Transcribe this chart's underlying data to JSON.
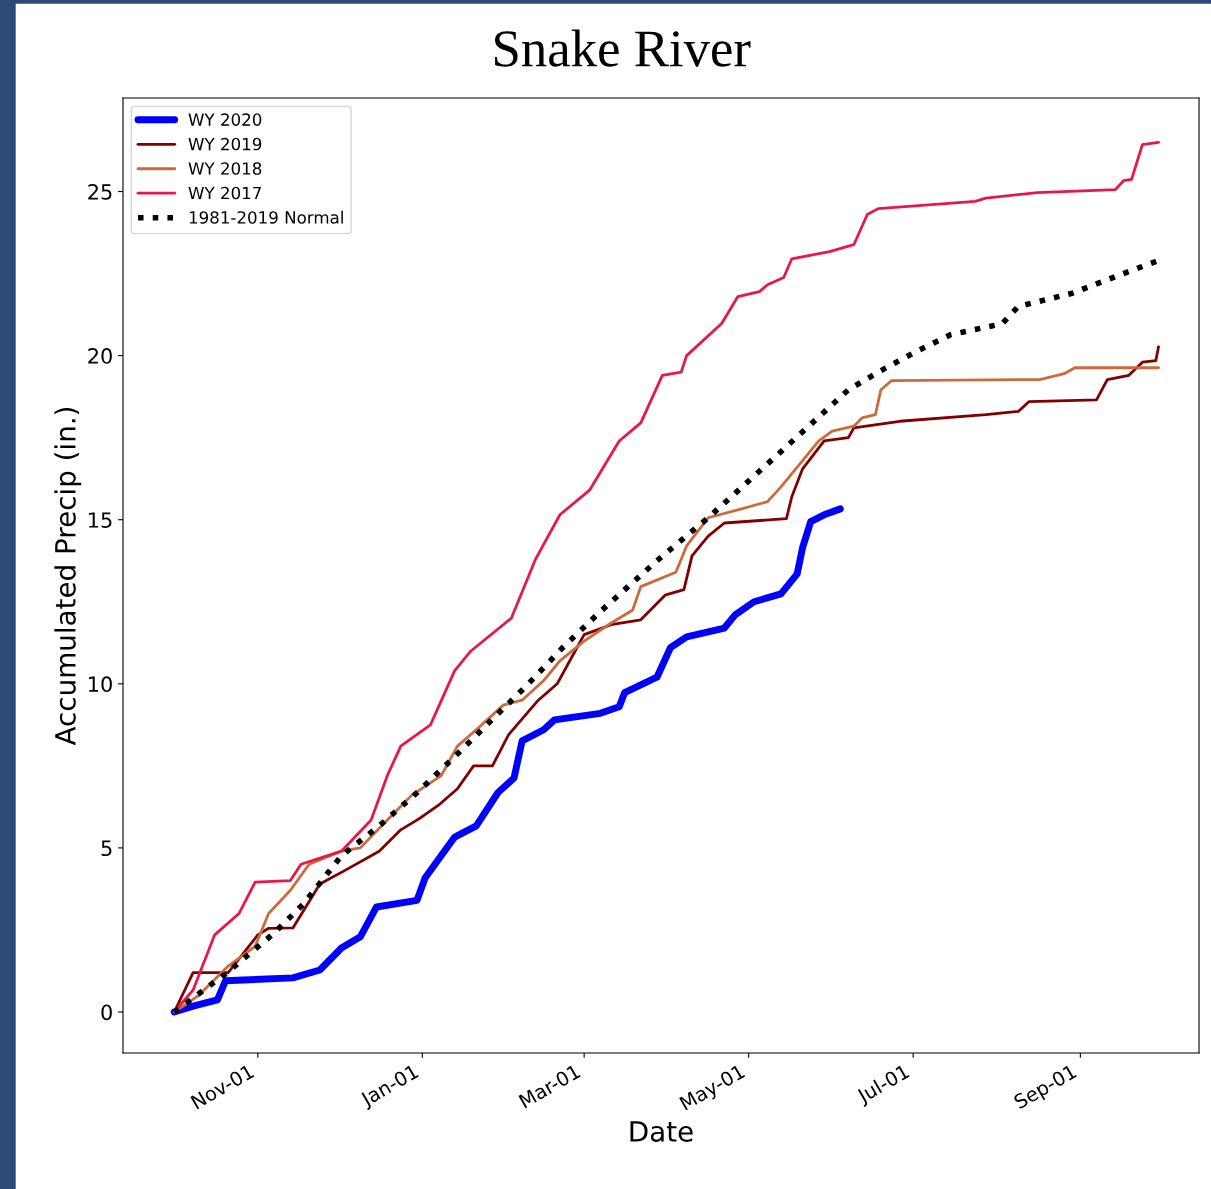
{
  "chart_data": {
    "type": "line",
    "title": "Snake River",
    "xlabel": "Date",
    "ylabel": "Accumulated Precip (in.)",
    "xlim": [
      "2019-09-12",
      "2020-10-15"
    ],
    "ylim": [
      -1.25,
      27.85
    ],
    "xticks": [
      {
        "value": "2019-11-01",
        "label": "Nov-01"
      },
      {
        "value": "2020-01-01",
        "label": "Jan-01"
      },
      {
        "value": "2020-03-01",
        "label": "Mar-01"
      },
      {
        "value": "2020-05-01",
        "label": "May-01"
      },
      {
        "value": "2020-07-01",
        "label": "Jul-01"
      },
      {
        "value": "2020-09-01",
        "label": "Sep-01"
      }
    ],
    "yticks": [
      0,
      5,
      10,
      15,
      20,
      25
    ],
    "grid": false,
    "legend": "top left",
    "marker": "none",
    "series": [
      {
        "name": "WY 2020",
        "color": "#0000ff",
        "line_style": "solid",
        "x": [
          "2019-10-01",
          "2019-10-08",
          "2019-10-17",
          "2019-10-20",
          "2019-11-14",
          "2019-11-24",
          "2019-12-02",
          "2019-12-09",
          "2019-12-15",
          "2019-12-30",
          "2020-01-02",
          "2020-01-13",
          "2020-01-21",
          "2020-01-29",
          "2020-02-04",
          "2020-02-07",
          "2020-02-15",
          "2020-02-19",
          "2020-03-07",
          "2020-03-14",
          "2020-03-16",
          "2020-03-28",
          "2020-04-02",
          "2020-04-08",
          "2020-04-22",
          "2020-04-26",
          "2020-05-03",
          "2020-05-13",
          "2020-05-19",
          "2020-05-21",
          "2020-05-24",
          "2020-05-29",
          "2020-06-04"
        ],
        "values": [
          0,
          0.18,
          0.37,
          0.95,
          1.04,
          1.28,
          1.95,
          2.29,
          3.2,
          3.4,
          4.08,
          5.33,
          5.67,
          6.68,
          7.13,
          8.26,
          8.6,
          8.9,
          9.1,
          9.3,
          9.73,
          10.2,
          11.1,
          11.43,
          11.7,
          12.1,
          12.5,
          12.74,
          13.35,
          14.15,
          14.94,
          15.15,
          15.33
        ]
      },
      {
        "name": "WY 2019",
        "color": "#800000",
        "line_style": "solid",
        "x": [
          "2019-10-01",
          "2019-10-08",
          "2019-10-21",
          "2019-11-01",
          "2019-11-05",
          "2019-11-14",
          "2019-11-24",
          "2019-12-03",
          "2019-12-16",
          "2019-12-24",
          "2019-12-31",
          "2020-01-07",
          "2020-01-14",
          "2020-01-20",
          "2020-01-27",
          "2020-02-02",
          "2020-02-13",
          "2020-02-20",
          "2020-02-26",
          "2020-03-01",
          "2020-03-11",
          "2020-03-22",
          "2020-03-31",
          "2020-04-07",
          "2020-04-10",
          "2020-04-16",
          "2020-04-22",
          "2020-05-15",
          "2020-05-17",
          "2020-05-21",
          "2020-05-29",
          "2020-06-07",
          "2020-06-09",
          "2020-06-26",
          "2020-07-28",
          "2020-08-09",
          "2020-08-13",
          "2020-09-07",
          "2020-09-11",
          "2020-09-19",
          "2020-09-24",
          "2020-09-29",
          "2020-09-30"
        ],
        "values": [
          0,
          1.2,
          1.2,
          2.35,
          2.55,
          2.56,
          3.9,
          4.3,
          4.9,
          5.55,
          5.9,
          6.3,
          6.8,
          7.5,
          7.5,
          8.45,
          9.5,
          10.0,
          10.9,
          11.5,
          11.8,
          11.95,
          12.7,
          12.87,
          13.9,
          14.5,
          14.9,
          15.03,
          15.7,
          16.55,
          17.4,
          17.5,
          17.8,
          18.0,
          18.2,
          18.3,
          18.6,
          18.65,
          19.27,
          19.4,
          19.8,
          19.85,
          20.27
        ]
      },
      {
        "name": "WY 2018",
        "color": "#cd6a3c",
        "line_style": "solid",
        "x": [
          "2019-10-01",
          "2019-10-10",
          "2019-10-21",
          "2019-10-31",
          "2019-11-05",
          "2019-11-13",
          "2019-11-20",
          "2019-12-02",
          "2019-12-09",
          "2019-12-19",
          "2019-12-28",
          "2020-01-08",
          "2020-01-14",
          "2020-01-21",
          "2020-01-31",
          "2020-02-07",
          "2020-02-15",
          "2020-02-21",
          "2020-03-01",
          "2020-03-10",
          "2020-03-19",
          "2020-03-22",
          "2020-04-04",
          "2020-04-08",
          "2020-04-16",
          "2020-04-27",
          "2020-05-08",
          "2020-05-13",
          "2020-05-21",
          "2020-05-27",
          "2020-06-01",
          "2020-06-09",
          "2020-06-12",
          "2020-06-17",
          "2020-06-19",
          "2020-06-23",
          "2020-08-17",
          "2020-08-26",
          "2020-08-30",
          "2020-09-30"
        ],
        "values": [
          0,
          0.5,
          1.4,
          2.0,
          3.0,
          3.7,
          4.5,
          4.9,
          5.0,
          5.85,
          6.6,
          7.2,
          8.1,
          8.6,
          9.35,
          9.5,
          10.1,
          10.7,
          11.3,
          11.8,
          12.25,
          12.96,
          13.4,
          14.2,
          15.06,
          15.3,
          15.55,
          16.0,
          16.8,
          17.4,
          17.7,
          17.85,
          18.1,
          18.2,
          18.95,
          19.24,
          19.27,
          19.45,
          19.63,
          19.63
        ]
      },
      {
        "name": "WY 2017",
        "color": "#e8174b",
        "line_style": "solid",
        "x": [
          "2019-10-01",
          "2019-10-08",
          "2019-10-16",
          "2019-10-25",
          "2019-10-31",
          "2019-11-13",
          "2019-11-17",
          "2019-12-02",
          "2019-12-13",
          "2019-12-19",
          "2019-12-24",
          "2020-01-04",
          "2020-01-13",
          "2020-01-19",
          "2020-02-03",
          "2020-02-12",
          "2020-02-21",
          "2020-03-03",
          "2020-03-14",
          "2020-03-22",
          "2020-03-30",
          "2020-04-06",
          "2020-04-08",
          "2020-04-21",
          "2020-04-27",
          "2020-05-05",
          "2020-05-08",
          "2020-05-14",
          "2020-05-17",
          "2020-05-31",
          "2020-06-09",
          "2020-06-14",
          "2020-06-18",
          "2020-07-24",
          "2020-07-28",
          "2020-08-16",
          "2020-09-14",
          "2020-09-17",
          "2020-09-20",
          "2020-09-24",
          "2020-09-30"
        ],
        "values": [
          0,
          0.67,
          2.35,
          3.0,
          3.96,
          4.0,
          4.5,
          4.9,
          5.85,
          7.2,
          8.1,
          8.75,
          10.4,
          11.0,
          12.0,
          13.8,
          15.15,
          15.9,
          17.4,
          17.95,
          19.4,
          19.5,
          20.0,
          20.98,
          21.8,
          21.95,
          22.16,
          22.38,
          22.95,
          23.17,
          23.38,
          24.3,
          24.48,
          24.7,
          24.8,
          24.97,
          25.06,
          25.33,
          25.37,
          26.43,
          26.5
        ]
      },
      {
        "name": "1981-2019 Normal",
        "color": "#000000",
        "line_style": "dotted",
        "x": [
          "2019-10-01",
          "2019-10-20",
          "2019-11-07",
          "2019-11-18",
          "2019-12-02",
          "2019-12-16",
          "2019-12-30",
          "2020-01-12",
          "2020-01-26",
          "2020-02-09",
          "2020-02-22",
          "2020-03-07",
          "2020-03-28",
          "2020-04-16",
          "2020-05-12",
          "2020-06-07",
          "2020-06-19",
          "2020-07-02",
          "2020-07-15",
          "2020-08-03",
          "2020-08-09",
          "2020-08-29",
          "2020-09-17",
          "2020-09-30"
        ],
        "values": [
          0,
          1.16,
          2.4,
          3.3,
          4.76,
          5.67,
          6.68,
          7.7,
          8.84,
          9.97,
          11.1,
          12.2,
          13.75,
          15.06,
          17.0,
          18.96,
          19.54,
          20.12,
          20.64,
          20.97,
          21.5,
          21.9,
          22.5,
          22.9
        ]
      }
    ]
  }
}
